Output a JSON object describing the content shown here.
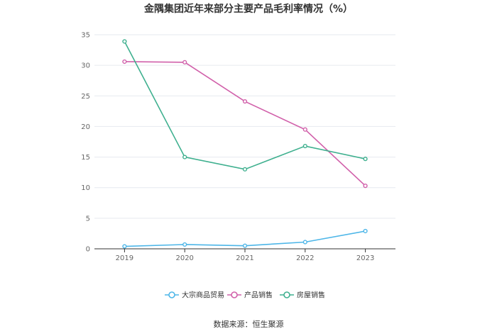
{
  "chart_data": {
    "type": "line",
    "title": "金隅集团近年来部分主要产品毛利率情况（%）",
    "categories": [
      "2019",
      "2020",
      "2021",
      "2022",
      "2023"
    ],
    "series": [
      {
        "name": "大宗商品贸易",
        "color": "#4db6e8",
        "values": [
          0.4,
          0.7,
          0.5,
          1.1,
          2.9
        ]
      },
      {
        "name": "产品销售",
        "color": "#d160aa",
        "values": [
          30.6,
          30.5,
          24.1,
          19.5,
          10.3
        ]
      },
      {
        "name": "房屋销售",
        "color": "#3fb08f",
        "values": [
          33.9,
          15.0,
          13.0,
          16.8,
          14.7
        ]
      }
    ],
    "ylim": [
      0,
      35
    ],
    "yticks": [
      0,
      5,
      10,
      15,
      20,
      25,
      30,
      35
    ],
    "grid": true,
    "legend_position": "bottom"
  },
  "source": "数据来源：恒生聚源"
}
